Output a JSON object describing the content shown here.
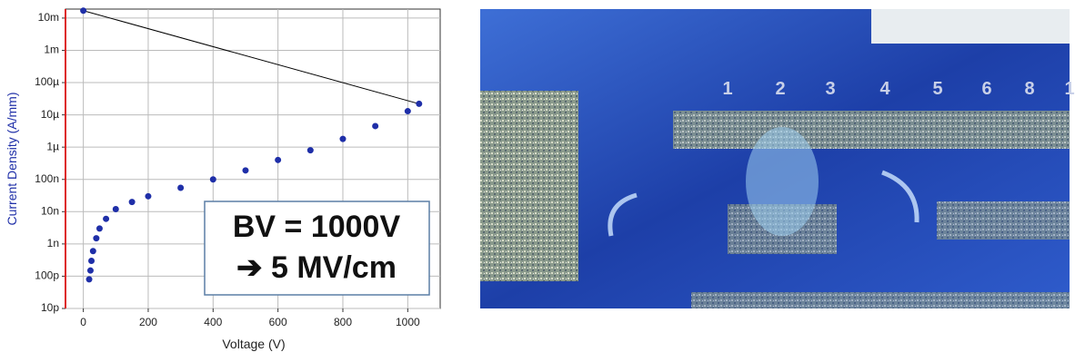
{
  "chart_data": {
    "type": "scatter",
    "x_label": "Voltage (V)",
    "y_label": "Current Density (A/mm)",
    "log_y": true,
    "grid": true,
    "xlim": [
      -55,
      1100
    ],
    "ylim": [
      1e-11,
      0.019
    ],
    "xticks": [
      0,
      200,
      400,
      600,
      800,
      1000
    ],
    "yticks": [
      {
        "value": 1e-11,
        "label": "10p"
      },
      {
        "value": 1e-10,
        "label": "100p"
      },
      {
        "value": 1e-09,
        "label": "1n"
      },
      {
        "value": 1e-08,
        "label": "10n"
      },
      {
        "value": 1e-07,
        "label": "100n"
      },
      {
        "value": 1e-06,
        "label": "1µ"
      },
      {
        "value": 1e-05,
        "label": "10µ"
      },
      {
        "value": 0.0001,
        "label": "100µ"
      },
      {
        "value": 0.001,
        "label": "1m"
      },
      {
        "value": 0.01,
        "label": "10m"
      }
    ],
    "series": [
      {
        "color": "#1f2fa8",
        "x": [
          0,
          18,
          22,
          25,
          30,
          40,
          50,
          70,
          100,
          150,
          200,
          300,
          400,
          500,
          600,
          700,
          800,
          900,
          1000,
          1035
        ],
        "values": [
          0.017,
          8e-11,
          1.5e-10,
          3e-10,
          6e-10,
          1.5e-09,
          3e-09,
          6e-09,
          1.2e-08,
          2e-08,
          3e-08,
          5.5e-08,
          1e-07,
          1.9e-07,
          4e-07,
          8e-07,
          1.8e-06,
          4.5e-06,
          1.3e-05,
          2.2e-05
        ]
      }
    ],
    "connector_color": "#000000",
    "annotation": [
      "BV = 1000V",
      "➔ 5 MV/cm"
    ]
  },
  "photo": {
    "labels": [
      "1",
      "2",
      "3",
      "4",
      "5",
      "6",
      "8",
      "1"
    ]
  }
}
